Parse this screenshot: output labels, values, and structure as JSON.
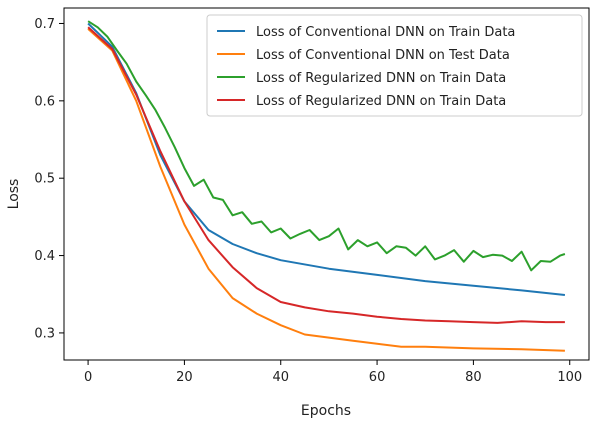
{
  "chart_data": {
    "type": "line",
    "title": "",
    "xlabel": "Epochs",
    "ylabel": "Loss",
    "xlim": [
      -5,
      104
    ],
    "ylim": [
      0.265,
      0.72
    ],
    "xticks": [
      0,
      20,
      40,
      60,
      80,
      100
    ],
    "yticks": [
      0.3,
      0.4,
      0.5,
      0.6,
      0.7
    ],
    "grid": false,
    "legend_position": "top-right",
    "series": [
      {
        "name": "Loss of Conventional DNN on Train Data",
        "color": "#1f77b4",
        "x": [
          0,
          5,
          10,
          15,
          20,
          25,
          30,
          35,
          40,
          50,
          60,
          70,
          80,
          90,
          99
        ],
        "y": [
          0.7,
          0.67,
          0.61,
          0.53,
          0.47,
          0.433,
          0.415,
          0.403,
          0.394,
          0.383,
          0.375,
          0.367,
          0.361,
          0.355,
          0.349
        ]
      },
      {
        "name": "Loss of Conventional DNN on Test Data",
        "color": "#ff7f0e",
        "x": [
          0,
          5,
          10,
          15,
          20,
          25,
          30,
          35,
          40,
          45,
          50,
          55,
          60,
          65,
          70,
          80,
          90,
          99
        ],
        "y": [
          0.693,
          0.665,
          0.6,
          0.515,
          0.44,
          0.383,
          0.345,
          0.325,
          0.31,
          0.298,
          0.294,
          0.29,
          0.286,
          0.282,
          0.282,
          0.28,
          0.279,
          0.277
        ]
      },
      {
        "name": "Loss of Regularized DNN on Train Data",
        "color": "#2ca02c",
        "x": [
          0,
          2,
          4,
          6,
          8,
          10,
          12,
          14,
          16,
          18,
          20,
          22,
          24,
          26,
          28,
          30,
          32,
          34,
          36,
          38,
          40,
          42,
          44,
          46,
          48,
          50,
          52,
          54,
          56,
          58,
          60,
          62,
          64,
          66,
          68,
          70,
          72,
          74,
          76,
          78,
          80,
          82,
          84,
          86,
          88,
          90,
          92,
          94,
          96,
          98,
          99
        ],
        "y": [
          0.703,
          0.695,
          0.683,
          0.665,
          0.648,
          0.625,
          0.607,
          0.588,
          0.565,
          0.54,
          0.513,
          0.49,
          0.498,
          0.475,
          0.472,
          0.452,
          0.456,
          0.441,
          0.444,
          0.43,
          0.435,
          0.422,
          0.428,
          0.433,
          0.42,
          0.425,
          0.435,
          0.408,
          0.42,
          0.412,
          0.417,
          0.403,
          0.412,
          0.41,
          0.4,
          0.412,
          0.395,
          0.4,
          0.407,
          0.392,
          0.406,
          0.398,
          0.401,
          0.4,
          0.393,
          0.405,
          0.381,
          0.393,
          0.392,
          0.4,
          0.402
        ]
      },
      {
        "name": "Loss of Regularized DNN on Train Data",
        "color": "#d62728",
        "x": [
          0,
          5,
          10,
          15,
          20,
          25,
          30,
          35,
          40,
          45,
          50,
          55,
          60,
          65,
          70,
          75,
          80,
          85,
          90,
          95,
          99
        ],
        "y": [
          0.695,
          0.667,
          0.608,
          0.535,
          0.47,
          0.42,
          0.385,
          0.358,
          0.34,
          0.333,
          0.328,
          0.325,
          0.321,
          0.318,
          0.316,
          0.315,
          0.314,
          0.313,
          0.315,
          0.314,
          0.314
        ]
      }
    ]
  }
}
